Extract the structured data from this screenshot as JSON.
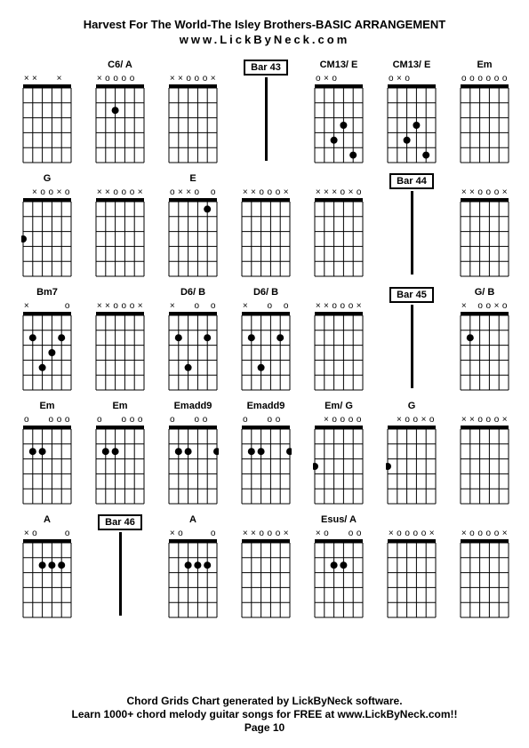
{
  "title": "Harvest For The World-The Isley Brothers-BASIC ARRANGEMENT",
  "subtitle": "www.LickByNeck.com",
  "footer": {
    "line1": "Chord Grids Chart generated by LickByNeck software.",
    "line2": "Learn 1000+ chord melody guitar songs for FREE at www.LickByNeck.com!!",
    "line3": "Page 10"
  },
  "style": {
    "bg": "#ffffff",
    "text": "#000000",
    "grid_cols": 7,
    "grid_rows": 5,
    "fretboard": {
      "width": 54,
      "height": 84,
      "strings": 6,
      "frets": 5,
      "line_color": "#000000",
      "nut_height": 4,
      "dot_radius": 4,
      "open_radius": 3
    }
  },
  "cells": [
    {
      "type": "chord",
      "label": "",
      "muted": [
        1,
        1,
        0,
        0,
        1,
        0
      ],
      "dots": [],
      "opens": []
    },
    {
      "type": "chord",
      "label": "C6/ A",
      "muted": [
        1,
        0,
        0,
        0,
        0,
        0
      ],
      "dots": [
        [
          2,
          2
        ]
      ],
      "opens": [
        1,
        2,
        3,
        4
      ]
    },
    {
      "type": "chord",
      "label": "",
      "muted": [
        1,
        1,
        0,
        0,
        0,
        1
      ],
      "dots": [],
      "opens": [
        2,
        3,
        4
      ]
    },
    {
      "type": "bar",
      "label": "Bar 43"
    },
    {
      "type": "chord",
      "label": "CM13/ E",
      "muted": [
        0,
        1,
        0,
        0,
        0,
        0
      ],
      "dots": [
        [
          3,
          3
        ],
        [
          2,
          4
        ],
        [
          4,
          5
        ]
      ],
      "opens": [
        0,
        2
      ]
    },
    {
      "type": "chord",
      "label": "CM13/ E",
      "muted": [
        0,
        1,
        0,
        0,
        0,
        0
      ],
      "dots": [
        [
          3,
          3
        ],
        [
          2,
          4
        ],
        [
          4,
          5
        ]
      ],
      "opens": [
        0,
        2
      ]
    },
    {
      "type": "chord",
      "label": "Em",
      "muted": [
        0,
        0,
        0,
        0,
        0,
        0
      ],
      "dots": [],
      "opens": [
        0,
        1,
        2,
        3,
        4,
        5
      ]
    },
    {
      "type": "chord",
      "label": "G",
      "muted": [
        0,
        1,
        0,
        0,
        1,
        0
      ],
      "dots": [
        [
          0,
          3
        ]
      ],
      "opens": [
        2,
        3,
        5
      ]
    },
    {
      "type": "chord",
      "label": "",
      "muted": [
        1,
        1,
        0,
        0,
        0,
        1
      ],
      "dots": [],
      "opens": [
        2,
        3,
        4
      ]
    },
    {
      "type": "chord",
      "label": "E",
      "muted": [
        0,
        1,
        1,
        0,
        0,
        0
      ],
      "dots": [
        [
          4,
          1
        ]
      ],
      "opens": [
        0,
        3,
        5
      ]
    },
    {
      "type": "chord",
      "label": "",
      "muted": [
        1,
        1,
        0,
        0,
        0,
        1
      ],
      "dots": [],
      "opens": [
        2,
        3,
        4
      ]
    },
    {
      "type": "chord",
      "label": "",
      "muted": [
        1,
        1,
        1,
        0,
        1,
        0
      ],
      "dots": [],
      "opens": [
        3,
        5
      ]
    },
    {
      "type": "bar",
      "label": "Bar 44"
    },
    {
      "type": "chord",
      "label": "",
      "muted": [
        1,
        1,
        0,
        0,
        0,
        1
      ],
      "dots": [],
      "opens": [
        2,
        3,
        4
      ]
    },
    {
      "type": "chord",
      "label": "Bm7",
      "muted": [
        1,
        0,
        0,
        0,
        0,
        0
      ],
      "dots": [
        [
          1,
          2
        ],
        [
          4,
          2
        ],
        [
          3,
          3
        ],
        [
          2,
          4
        ]
      ],
      "opens": [
        5
      ]
    },
    {
      "type": "chord",
      "label": "",
      "muted": [
        1,
        1,
        0,
        0,
        0,
        1
      ],
      "dots": [],
      "opens": [
        2,
        3,
        4
      ]
    },
    {
      "type": "chord",
      "label": "D6/ B",
      "muted": [
        1,
        0,
        0,
        0,
        0,
        0
      ],
      "dots": [
        [
          1,
          2
        ],
        [
          4,
          2
        ],
        [
          2,
          4
        ]
      ],
      "opens": [
        3,
        5
      ]
    },
    {
      "type": "chord",
      "label": "D6/ B",
      "muted": [
        1,
        0,
        0,
        0,
        0,
        0
      ],
      "dots": [
        [
          1,
          2
        ],
        [
          4,
          2
        ],
        [
          2,
          4
        ]
      ],
      "opens": [
        3,
        5
      ]
    },
    {
      "type": "chord",
      "label": "",
      "muted": [
        1,
        1,
        0,
        0,
        0,
        1
      ],
      "dots": [],
      "opens": [
        2,
        3,
        4
      ]
    },
    {
      "type": "bar",
      "label": "Bar 45"
    },
    {
      "type": "chord",
      "label": "G/ B",
      "muted": [
        1,
        0,
        0,
        0,
        1,
        0
      ],
      "dots": [
        [
          1,
          2
        ]
      ],
      "opens": [
        2,
        3,
        5
      ]
    },
    {
      "type": "chord",
      "label": "Em",
      "muted": [
        0,
        0,
        0,
        0,
        0,
        0
      ],
      "dots": [
        [
          1,
          2
        ],
        [
          2,
          2
        ]
      ],
      "opens": [
        0,
        3,
        4,
        5
      ]
    },
    {
      "type": "chord",
      "label": "Em",
      "muted": [
        0,
        0,
        0,
        0,
        0,
        0
      ],
      "dots": [
        [
          1,
          2
        ],
        [
          2,
          2
        ]
      ],
      "opens": [
        0,
        3,
        4,
        5
      ]
    },
    {
      "type": "chord",
      "label": "Emadd9",
      "muted": [
        0,
        0,
        0,
        0,
        0,
        0
      ],
      "dots": [
        [
          1,
          2
        ],
        [
          2,
          2
        ],
        [
          5,
          2
        ]
      ],
      "opens": [
        0,
        3,
        4
      ]
    },
    {
      "type": "chord",
      "label": "Emadd9",
      "muted": [
        0,
        0,
        0,
        0,
        0,
        0
      ],
      "dots": [
        [
          1,
          2
        ],
        [
          2,
          2
        ],
        [
          5,
          2
        ]
      ],
      "opens": [
        0,
        3,
        4
      ]
    },
    {
      "type": "chord",
      "label": "Em/ G",
      "muted": [
        0,
        1,
        0,
        0,
        0,
        0
      ],
      "dots": [
        [
          0,
          3
        ]
      ],
      "opens": [
        2,
        3,
        4,
        5
      ]
    },
    {
      "type": "chord",
      "label": "G",
      "muted": [
        0,
        1,
        0,
        0,
        1,
        0
      ],
      "dots": [
        [
          0,
          3
        ]
      ],
      "opens": [
        2,
        3,
        5
      ]
    },
    {
      "type": "chord",
      "label": "",
      "muted": [
        1,
        1,
        0,
        0,
        0,
        1
      ],
      "dots": [],
      "opens": [
        2,
        3,
        4
      ]
    },
    {
      "type": "chord",
      "label": "A",
      "muted": [
        1,
        0,
        0,
        0,
        0,
        0
      ],
      "dots": [
        [
          2,
          2
        ],
        [
          3,
          2
        ],
        [
          4,
          2
        ]
      ],
      "opens": [
        1,
        5
      ]
    },
    {
      "type": "bar",
      "label": "Bar 46"
    },
    {
      "type": "chord",
      "label": "A",
      "muted": [
        1,
        0,
        0,
        0,
        0,
        0
      ],
      "dots": [
        [
          2,
          2
        ],
        [
          3,
          2
        ],
        [
          4,
          2
        ]
      ],
      "opens": [
        1,
        5
      ]
    },
    {
      "type": "chord",
      "label": "",
      "muted": [
        1,
        1,
        0,
        0,
        0,
        1
      ],
      "dots": [],
      "opens": [
        2,
        3,
        4
      ]
    },
    {
      "type": "chord",
      "label": "Esus/ A",
      "muted": [
        1,
        0,
        0,
        0,
        0,
        0
      ],
      "dots": [
        [
          2,
          2
        ],
        [
          3,
          2
        ]
      ],
      "opens": [
        1,
        4,
        5
      ]
    },
    {
      "type": "chord",
      "label": "",
      "muted": [
        1,
        0,
        0,
        0,
        0,
        1
      ],
      "dots": [],
      "opens": [
        1,
        2,
        3,
        4
      ]
    },
    {
      "type": "chord",
      "label": "",
      "muted": [
        1,
        0,
        0,
        0,
        0,
        1
      ],
      "dots": [],
      "opens": [
        1,
        2,
        3,
        4
      ]
    }
  ]
}
